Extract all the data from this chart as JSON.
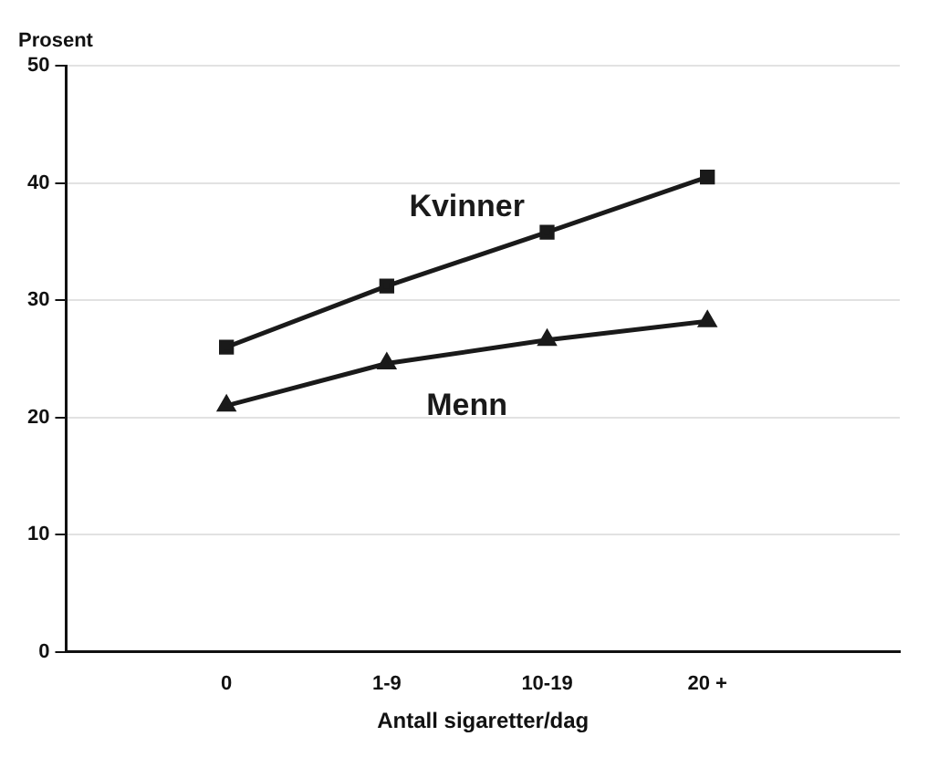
{
  "chart_data": {
    "type": "line",
    "ylabel": "Prosent",
    "xlabel": "Antall sigaretter/dag",
    "categories": [
      "0",
      "1-9",
      "10-19",
      "20 +"
    ],
    "series": [
      {
        "name": "Kvinner",
        "color": "#1a1a1a",
        "marker": "square",
        "values": [
          26,
          31.2,
          35.8,
          40.5
        ]
      },
      {
        "name": "Menn",
        "color": "#1a1a1a",
        "marker": "triangle",
        "values": [
          21,
          24.6,
          26.6,
          28.2
        ]
      }
    ],
    "ylim": [
      0,
      50
    ],
    "yticks": [
      0,
      10,
      20,
      30,
      40,
      50
    ],
    "grid": "y",
    "legend": false,
    "line_style": "solid"
  }
}
